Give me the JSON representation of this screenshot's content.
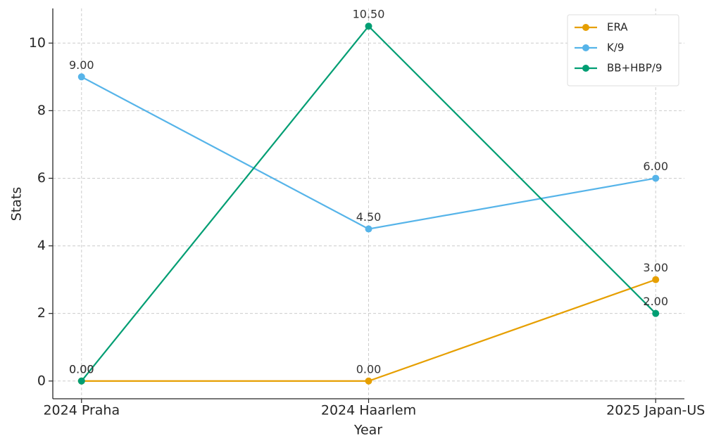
{
  "chart_data": {
    "type": "line",
    "x_label": "Year",
    "y_label": "Stats",
    "categories": [
      "2024 Praha",
      "2024 Haarlem",
      "2025 Japan-US"
    ],
    "series": [
      {
        "name": "ERA",
        "color": "#e69f00",
        "values": [
          0,
          0,
          3
        ],
        "value_labels": [
          "0.00",
          "0.00",
          "3.00"
        ]
      },
      {
        "name": "K/9",
        "color": "#56b4e9",
        "values": [
          9,
          4.5,
          6
        ],
        "value_labels": [
          "9.00",
          "4.50",
          "6.00"
        ]
      },
      {
        "name": "BB+HBP/9",
        "color": "#009e73",
        "values": [
          0,
          10.5,
          2
        ],
        "value_labels": [
          "0.00",
          "10.50",
          "2.00"
        ]
      }
    ],
    "ylim": [
      -0.525,
      11.025
    ],
    "yticks": [
      0,
      2,
      4,
      6,
      8,
      10
    ],
    "grid": true,
    "legend": "upper right"
  }
}
